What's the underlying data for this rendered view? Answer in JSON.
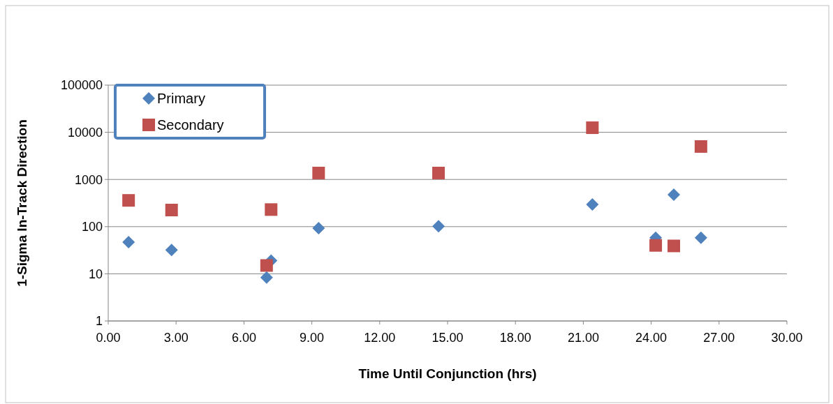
{
  "chart_data": {
    "type": "scatter",
    "xlabel": "Time Until Conjunction (hrs)",
    "ylabel": "1-Sigma In-Track Direction",
    "log": "y",
    "grid": "y",
    "legend": "top left",
    "xlim": [
      0,
      30
    ],
    "xticks": [
      {
        "value": 0,
        "label": "0.00"
      },
      {
        "value": 3,
        "label": "3.00"
      },
      {
        "value": 6,
        "label": "6.00"
      },
      {
        "value": 9,
        "label": "9.00"
      },
      {
        "value": 12,
        "label": "12.00"
      },
      {
        "value": 15,
        "label": "15.00"
      },
      {
        "value": 18,
        "label": "18.00"
      },
      {
        "value": 21,
        "label": "21.00"
      },
      {
        "value": 24,
        "label": "24.00"
      },
      {
        "value": 27,
        "label": "27.00"
      },
      {
        "value": 30,
        "label": "30.00"
      }
    ],
    "ylim": [
      1,
      100000
    ],
    "yticks": [
      1,
      10,
      100,
      1000,
      10000,
      100000
    ],
    "series": [
      {
        "name": "Primary",
        "color": "#4f81bd",
        "marker": "diamond",
        "x": [
          0.9,
          2.8,
          7.0,
          7.2,
          9.3,
          14.6,
          21.4,
          24.2,
          25.0,
          26.2
        ],
        "values": [
          47,
          32,
          8.3,
          19,
          93,
          102,
          295,
          58,
          475,
          58
        ]
      },
      {
        "name": "Secondary",
        "color": "#c0504d",
        "marker": "square",
        "x": [
          0.9,
          2.8,
          7.0,
          7.2,
          9.3,
          14.6,
          21.4,
          24.2,
          25.0,
          26.2
        ],
        "values": [
          360,
          225,
          15,
          230,
          1370,
          1370,
          12500,
          40,
          39,
          5000
        ]
      }
    ]
  }
}
